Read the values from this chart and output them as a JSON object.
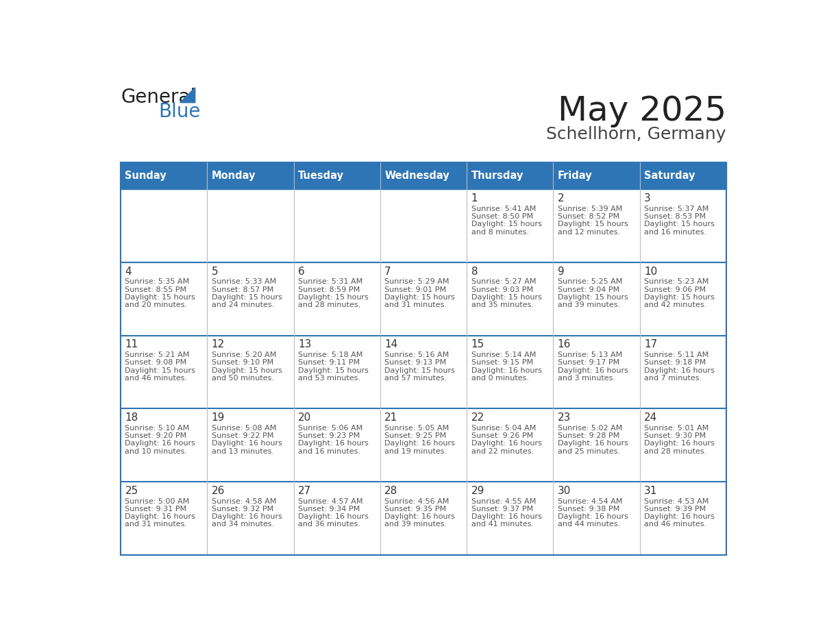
{
  "title": "May 2025",
  "subtitle": "Schellhorn, Germany",
  "header_bg_color": "#2E75B6",
  "header_text_color": "#FFFFFF",
  "border_color": "#2E75B6",
  "day_number_color": "#333333",
  "text_color": "#555555",
  "days_of_week": [
    "Sunday",
    "Monday",
    "Tuesday",
    "Wednesday",
    "Thursday",
    "Friday",
    "Saturday"
  ],
  "calendar_data": [
    [
      {
        "day": "",
        "info": ""
      },
      {
        "day": "",
        "info": ""
      },
      {
        "day": "",
        "info": ""
      },
      {
        "day": "",
        "info": ""
      },
      {
        "day": "1",
        "info": "Sunrise: 5:41 AM\nSunset: 8:50 PM\nDaylight: 15 hours\nand 8 minutes."
      },
      {
        "day": "2",
        "info": "Sunrise: 5:39 AM\nSunset: 8:52 PM\nDaylight: 15 hours\nand 12 minutes."
      },
      {
        "day": "3",
        "info": "Sunrise: 5:37 AM\nSunset: 8:53 PM\nDaylight: 15 hours\nand 16 minutes."
      }
    ],
    [
      {
        "day": "4",
        "info": "Sunrise: 5:35 AM\nSunset: 8:55 PM\nDaylight: 15 hours\nand 20 minutes."
      },
      {
        "day": "5",
        "info": "Sunrise: 5:33 AM\nSunset: 8:57 PM\nDaylight: 15 hours\nand 24 minutes."
      },
      {
        "day": "6",
        "info": "Sunrise: 5:31 AM\nSunset: 8:59 PM\nDaylight: 15 hours\nand 28 minutes."
      },
      {
        "day": "7",
        "info": "Sunrise: 5:29 AM\nSunset: 9:01 PM\nDaylight: 15 hours\nand 31 minutes."
      },
      {
        "day": "8",
        "info": "Sunrise: 5:27 AM\nSunset: 9:03 PM\nDaylight: 15 hours\nand 35 minutes."
      },
      {
        "day": "9",
        "info": "Sunrise: 5:25 AM\nSunset: 9:04 PM\nDaylight: 15 hours\nand 39 minutes."
      },
      {
        "day": "10",
        "info": "Sunrise: 5:23 AM\nSunset: 9:06 PM\nDaylight: 15 hours\nand 42 minutes."
      }
    ],
    [
      {
        "day": "11",
        "info": "Sunrise: 5:21 AM\nSunset: 9:08 PM\nDaylight: 15 hours\nand 46 minutes."
      },
      {
        "day": "12",
        "info": "Sunrise: 5:20 AM\nSunset: 9:10 PM\nDaylight: 15 hours\nand 50 minutes."
      },
      {
        "day": "13",
        "info": "Sunrise: 5:18 AM\nSunset: 9:11 PM\nDaylight: 15 hours\nand 53 minutes."
      },
      {
        "day": "14",
        "info": "Sunrise: 5:16 AM\nSunset: 9:13 PM\nDaylight: 15 hours\nand 57 minutes."
      },
      {
        "day": "15",
        "info": "Sunrise: 5:14 AM\nSunset: 9:15 PM\nDaylight: 16 hours\nand 0 minutes."
      },
      {
        "day": "16",
        "info": "Sunrise: 5:13 AM\nSunset: 9:17 PM\nDaylight: 16 hours\nand 3 minutes."
      },
      {
        "day": "17",
        "info": "Sunrise: 5:11 AM\nSunset: 9:18 PM\nDaylight: 16 hours\nand 7 minutes."
      }
    ],
    [
      {
        "day": "18",
        "info": "Sunrise: 5:10 AM\nSunset: 9:20 PM\nDaylight: 16 hours\nand 10 minutes."
      },
      {
        "day": "19",
        "info": "Sunrise: 5:08 AM\nSunset: 9:22 PM\nDaylight: 16 hours\nand 13 minutes."
      },
      {
        "day": "20",
        "info": "Sunrise: 5:06 AM\nSunset: 9:23 PM\nDaylight: 16 hours\nand 16 minutes."
      },
      {
        "day": "21",
        "info": "Sunrise: 5:05 AM\nSunset: 9:25 PM\nDaylight: 16 hours\nand 19 minutes."
      },
      {
        "day": "22",
        "info": "Sunrise: 5:04 AM\nSunset: 9:26 PM\nDaylight: 16 hours\nand 22 minutes."
      },
      {
        "day": "23",
        "info": "Sunrise: 5:02 AM\nSunset: 9:28 PM\nDaylight: 16 hours\nand 25 minutes."
      },
      {
        "day": "24",
        "info": "Sunrise: 5:01 AM\nSunset: 9:30 PM\nDaylight: 16 hours\nand 28 minutes."
      }
    ],
    [
      {
        "day": "25",
        "info": "Sunrise: 5:00 AM\nSunset: 9:31 PM\nDaylight: 16 hours\nand 31 minutes."
      },
      {
        "day": "26",
        "info": "Sunrise: 4:58 AM\nSunset: 9:32 PM\nDaylight: 16 hours\nand 34 minutes."
      },
      {
        "day": "27",
        "info": "Sunrise: 4:57 AM\nSunset: 9:34 PM\nDaylight: 16 hours\nand 36 minutes."
      },
      {
        "day": "28",
        "info": "Sunrise: 4:56 AM\nSunset: 9:35 PM\nDaylight: 16 hours\nand 39 minutes."
      },
      {
        "day": "29",
        "info": "Sunrise: 4:55 AM\nSunset: 9:37 PM\nDaylight: 16 hours\nand 41 minutes."
      },
      {
        "day": "30",
        "info": "Sunrise: 4:54 AM\nSunset: 9:38 PM\nDaylight: 16 hours\nand 44 minutes."
      },
      {
        "day": "31",
        "info": "Sunrise: 4:53 AM\nSunset: 9:39 PM\nDaylight: 16 hours\nand 46 minutes."
      }
    ]
  ]
}
